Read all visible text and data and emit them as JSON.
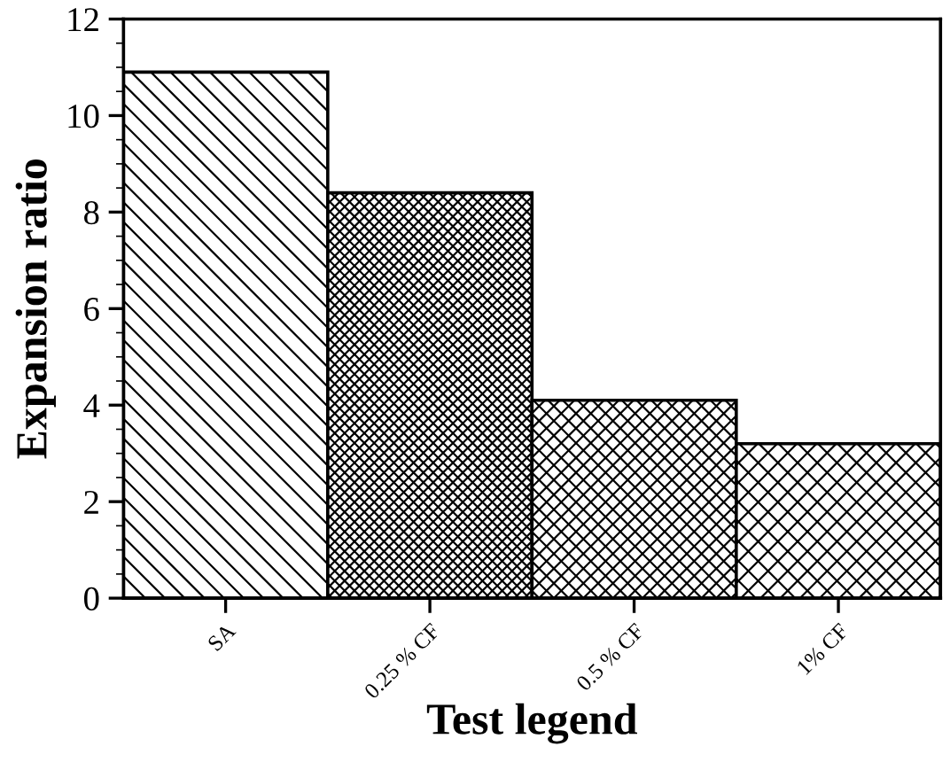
{
  "chart_data": {
    "type": "bar",
    "xlabel": "Test legend",
    "ylabel": "Expansion ratio",
    "categories": [
      "SA",
      "0.25 % CF",
      "0.5 % CF",
      "1% CF"
    ],
    "values": [
      10.9,
      8.4,
      4.1,
      3.2
    ],
    "color": "#000000",
    "ylim": [
      0,
      12
    ],
    "yticks": [
      0,
      2,
      4,
      6,
      8,
      10,
      12
    ],
    "grid": false,
    "legend": false
  }
}
